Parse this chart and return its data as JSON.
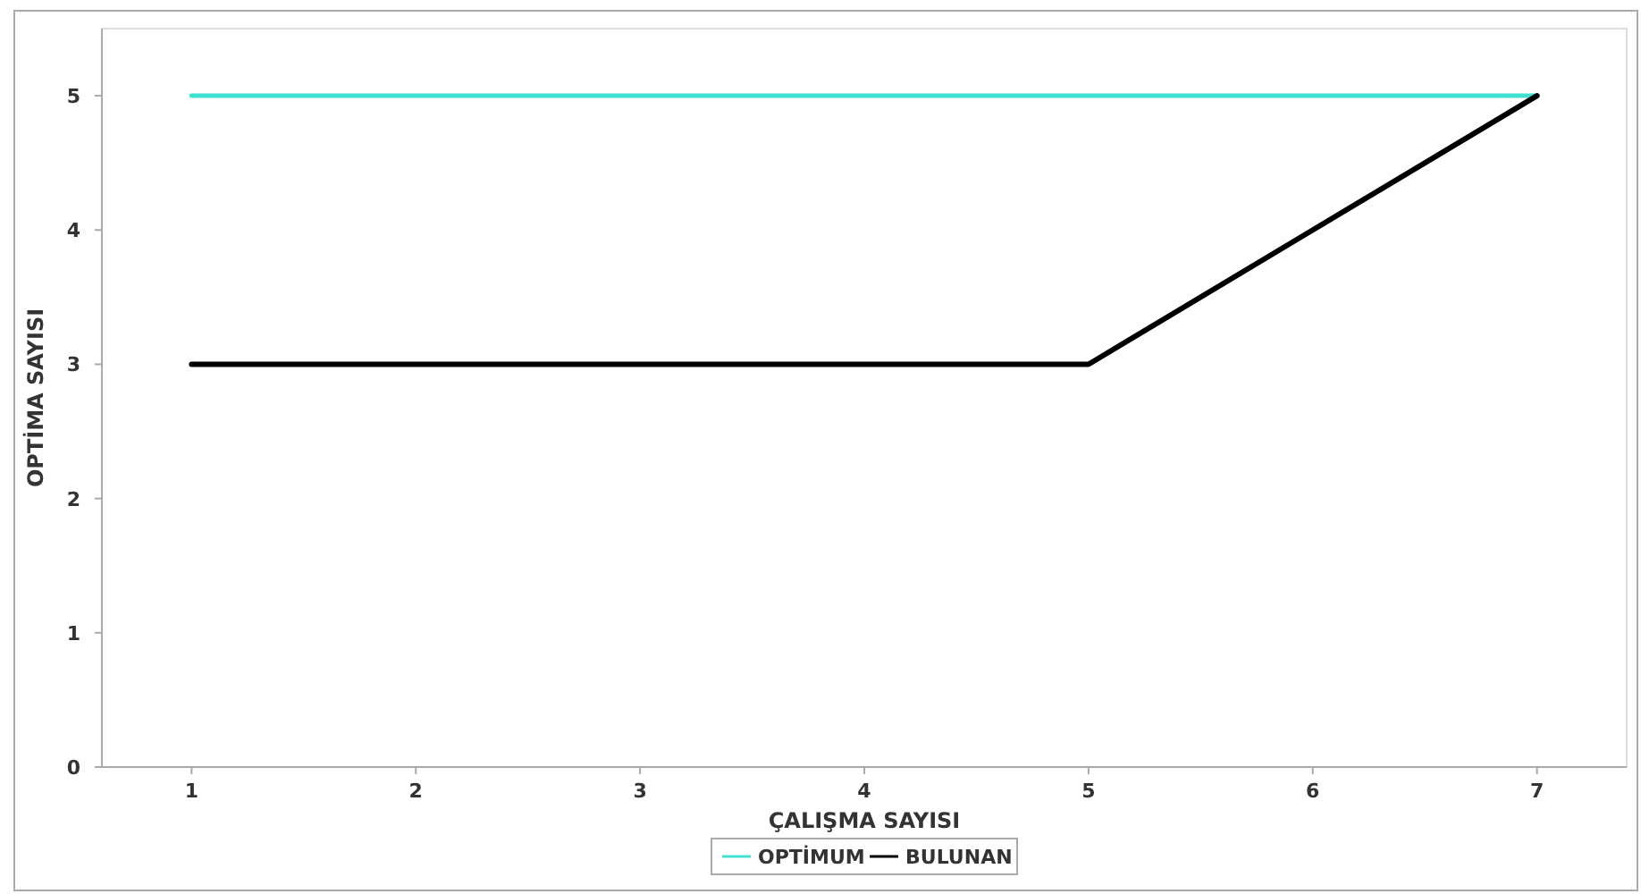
{
  "chart_data": {
    "type": "line",
    "xlabel": "ÇALIŞMA SAYISI",
    "ylabel": "OPTİMA SAYISI",
    "x": [
      1,
      2,
      3,
      4,
      5,
      6,
      7
    ],
    "series": [
      {
        "name": "OPTİMUM",
        "color": "#40e0d0",
        "values": [
          5,
          5,
          5,
          5,
          5,
          5,
          5
        ]
      },
      {
        "name": "BULUNAN",
        "color": "#000000",
        "values": [
          3,
          3,
          3,
          3,
          3,
          4,
          5
        ]
      }
    ],
    "xlim": [
      0.6,
      7.4
    ],
    "xticks": [
      1,
      2,
      3,
      4,
      5,
      6,
      7
    ],
    "ylim": [
      0,
      5.5
    ],
    "yticks": [
      0,
      1,
      2,
      3,
      4,
      5
    ],
    "grid": false,
    "legend": "bottom",
    "marker": "none",
    "line_style": "solid"
  }
}
